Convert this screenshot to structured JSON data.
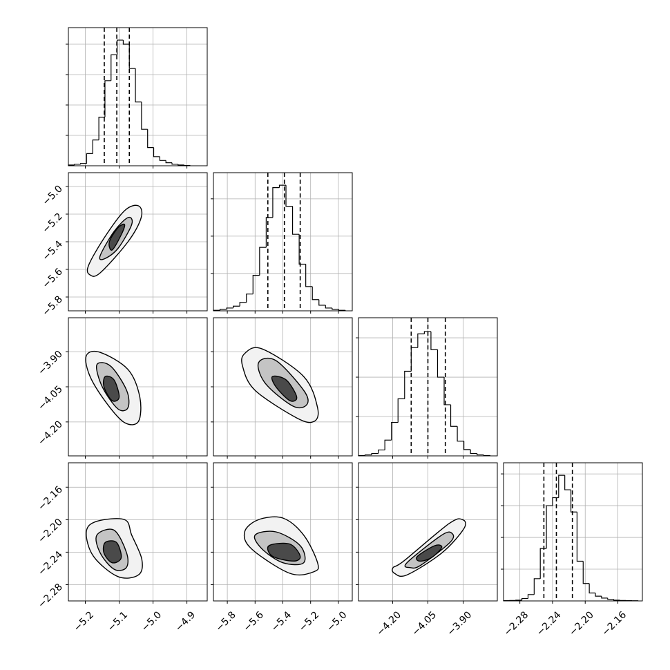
{
  "chart_data": {
    "type": "corner",
    "grid": true,
    "color": "#000000",
    "parameters": [
      {
        "lim": [
          -5.25,
          -4.84
        ],
        "ticks": [
          {
            "value": -5.2,
            "label": "−5.2"
          },
          {
            "value": -5.1,
            "label": "−5.1"
          },
          {
            "value": -5.0,
            "label": "−5.0"
          },
          {
            "value": -4.9,
            "label": "−4.9"
          }
        ]
      },
      {
        "lim": [
          -5.9,
          -4.9
        ],
        "ticks": [
          {
            "value": -5.8,
            "label": "−5.8"
          },
          {
            "value": -5.6,
            "label": "−5.6"
          },
          {
            "value": -5.4,
            "label": "−5.4"
          },
          {
            "value": -5.2,
            "label": "−5.2"
          },
          {
            "value": -5.0,
            "label": "−5.0"
          }
        ]
      },
      {
        "lim": [
          -4.345,
          -3.755
        ],
        "ticks": [
          {
            "value": -4.2,
            "label": "−4.20"
          },
          {
            "value": -4.05,
            "label": "−4.05"
          },
          {
            "value": -3.9,
            "label": "−3.90"
          }
        ]
      },
      {
        "lim": [
          -2.3,
          -2.13
        ],
        "ticks": [
          {
            "value": -2.28,
            "label": "−2.28"
          },
          {
            "value": -2.24,
            "label": "−2.24"
          },
          {
            "value": -2.2,
            "label": "−2.20"
          },
          {
            "value": -2.16,
            "label": "−2.16"
          }
        ]
      }
    ],
    "histograms": [
      {
        "bins": [
          -5.25,
          -5.232,
          -5.214,
          -5.196,
          -5.178,
          -5.16,
          -5.142,
          -5.124,
          -5.106,
          -5.088,
          -5.07,
          -5.052,
          -5.034,
          -5.016,
          -4.998,
          -4.98,
          -4.962,
          -4.944,
          -4.926,
          -4.908,
          -4.89
        ],
        "counts": [
          5,
          10,
          15,
          80,
          170,
          320,
          560,
          730,
          827,
          800,
          640,
          420,
          240,
          120,
          60,
          35,
          20,
          10,
          5,
          2
        ],
        "ylim": [
          0,
          909
        ],
        "yticks": [
          200,
          400,
          600,
          800
        ],
        "quantiles": [
          -5.144,
          -5.107,
          -5.07
        ]
      },
      {
        "bins": [
          -5.9,
          -5.8525,
          -5.805,
          -5.7575,
          -5.71,
          -5.6625,
          -5.615,
          -5.5675,
          -5.52,
          -5.4725,
          -5.425,
          -5.3775,
          -5.33,
          -5.2825,
          -5.235,
          -5.1875,
          -5.14,
          -5.0925,
          -5.045,
          -4.9975,
          -4.95
        ],
        "counts": [
          3,
          8,
          15,
          25,
          45,
          90,
          190,
          340,
          500,
          660,
          673,
          560,
          410,
          250,
          130,
          60,
          30,
          15,
          8,
          3
        ],
        "ylim": [
          0,
          740
        ],
        "yticks": [
          200,
          400,
          600
        ],
        "quantiles": [
          -5.508,
          -5.389,
          -5.275
        ]
      },
      {
        "bins": [
          -4.345,
          -4.317,
          -4.289,
          -4.261,
          -4.233,
          -4.205,
          -4.177,
          -4.149,
          -4.121,
          -4.093,
          -4.065,
          -4.037,
          -4.009,
          -3.981,
          -3.953,
          -3.925,
          -3.897,
          -3.869,
          -3.841,
          -3.813,
          -3.785
        ],
        "counts": [
          2,
          5,
          12,
          30,
          80,
          170,
          290,
          430,
          550,
          620,
          632,
          540,
          400,
          260,
          150,
          75,
          32,
          12,
          5,
          2
        ],
        "ylim": [
          0,
          702
        ],
        "yticks": [
          200,
          400,
          600
        ],
        "quantiles": [
          -4.121,
          -4.05,
          -3.976
        ]
      },
      {
        "bins": [
          -2.3,
          -2.2925,
          -2.285,
          -2.2775,
          -2.27,
          -2.2625,
          -2.255,
          -2.2475,
          -2.24,
          -2.2325,
          -2.225,
          -2.2175,
          -2.21,
          -2.2025,
          -2.195,
          -2.1875,
          -2.18,
          -2.1725,
          -2.165,
          -2.1575,
          -2.15,
          -2.1425,
          -2.135
        ],
        "counts": [
          2,
          3,
          5,
          15,
          40,
          140,
          330,
          600,
          650,
          791,
          700,
          560,
          250,
          110,
          50,
          30,
          18,
          10,
          5,
          3,
          2,
          1
        ],
        "ylim": [
          0,
          870
        ],
        "yticks": [
          200,
          400,
          600,
          800
        ],
        "quantiles": [
          -2.2506,
          -2.2353,
          -2.2157
        ]
      }
    ],
    "pairs": [
      [
        {
          "contours": [
            {
              "x": [
                -5.186,
                -5.191,
                -5.145,
                -5.084,
                -5.043,
                -5.035,
                -5.074,
                -5.156
              ],
              "y": [
                -5.64,
                -5.575,
                -5.375,
                -5.175,
                -5.14,
                -5.225,
                -5.4,
                -5.625
              ]
            },
            {
              "x": [
                -5.156,
                -5.115,
                -5.074,
                -5.063,
                -5.104,
                -5.145
              ],
              "y": [
                -5.5,
                -5.325,
                -5.225,
                -5.275,
                -5.45,
                -5.525
              ]
            },
            {
              "x": [
                -5.129,
                -5.104,
                -5.084,
                -5.094,
                -5.121
              ],
              "y": [
                -5.4,
                -5.3,
                -5.275,
                -5.35,
                -5.46
              ]
            }
          ]
        }
      ],
      [
        {
          "contours": [
            {
              "x": [
                -5.197,
                -5.156,
                -5.074,
                -5.039,
                -5.043,
                -5.084,
                -5.135,
                -5.186
              ],
              "y": [
                -3.917,
                -3.903,
                -3.976,
                -4.094,
                -4.198,
                -4.203,
                -4.124,
                -4.006
              ]
            },
            {
              "x": [
                -5.166,
                -5.125,
                -5.078,
                -5.074,
                -5.104,
                -5.15
              ],
              "y": [
                -3.956,
                -3.962,
                -4.065,
                -4.139,
                -4.144,
                -4.05
              ]
            },
            {
              "x": [
                -5.141,
                -5.115,
                -5.1,
                -5.121,
                -5.145
              ],
              "y": [
                -4.006,
                -4.021,
                -4.094,
                -4.109,
                -4.05
              ]
            }
          ]
        },
        {
          "contours": [
            {
              "x": [
                -5.675,
                -5.55,
                -5.25,
                -5.15,
                -5.175,
                -5.3,
                -5.6,
                -5.69
              ],
              "y": [
                -3.908,
                -3.888,
                -4.006,
                -4.139,
                -4.198,
                -4.183,
                -4.065,
                -3.962
              ]
            },
            {
              "x": [
                -5.575,
                -5.45,
                -5.25,
                -5.225,
                -5.325,
                -5.525
              ],
              "y": [
                -3.947,
                -3.938,
                -4.065,
                -4.124,
                -4.133,
                -4.036
              ]
            },
            {
              "x": [
                -5.475,
                -5.375,
                -5.3,
                -5.35,
                -5.45
              ],
              "y": [
                -4.006,
                -4.021,
                -4.094,
                -4.109,
                -4.05
              ]
            }
          ]
        }
      ],
      [
        {
          "contours": [
            {
              "x": [
                -5.197,
                -5.166,
                -5.084,
                -5.063,
                -5.033,
                -5.043,
                -5.104,
                -5.176
              ],
              "y": [
                -2.215,
                -2.202,
                -2.2,
                -2.219,
                -2.249,
                -2.268,
                -2.27,
                -2.245
              ]
            },
            {
              "x": [
                -5.166,
                -5.115,
                -5.078,
                -5.079,
                -5.115,
                -5.156
              ],
              "y": [
                -2.219,
                -2.213,
                -2.241,
                -2.259,
                -2.261,
                -2.241
              ]
            },
            {
              "x": [
                -5.141,
                -5.108,
                -5.094,
                -5.121,
                -5.145
              ],
              "y": [
                -2.228,
                -2.228,
                -2.247,
                -2.253,
                -2.241
              ]
            }
          ]
        },
        {
          "contours": [
            {
              "x": [
                -5.675,
                -5.575,
                -5.4,
                -5.25,
                -5.15,
                -5.175,
                -5.35,
                -5.625
              ],
              "y": [
                -2.215,
                -2.2,
                -2.198,
                -2.219,
                -2.253,
                -2.264,
                -2.266,
                -2.236
              ]
            },
            {
              "x": [
                -5.6,
                -5.45,
                -5.275,
                -5.25,
                -5.4,
                -5.55
              ],
              "y": [
                -2.219,
                -2.215,
                -2.232,
                -2.253,
                -2.253,
                -2.236
              ]
            },
            {
              "x": [
                -5.5,
                -5.35,
                -5.275,
                -5.325,
                -5.475
              ],
              "y": [
                -2.232,
                -2.23,
                -2.245,
                -2.251,
                -2.245
              ]
            }
          ]
        },
        {
          "contours": [
            {
              "x": [
                -4.198,
                -4.153,
                -3.961,
                -3.903,
                -3.897,
                -3.991,
                -4.139,
                -4.192
              ],
              "y": [
                -2.259,
                -2.251,
                -2.205,
                -2.2,
                -2.211,
                -2.241,
                -2.268,
                -2.266
              ]
            },
            {
              "x": [
                -4.139,
                -3.991,
                -3.947,
                -3.956,
                -4.08,
                -4.124
              ],
              "y": [
                -2.253,
                -2.219,
                -2.217,
                -2.228,
                -2.256,
                -2.259
              ]
            },
            {
              "x": [
                -4.094,
                -4.021,
                -3.991,
                -4.036,
                -4.086
              ],
              "y": [
                -2.245,
                -2.232,
                -2.234,
                -2.247,
                -2.251
              ]
            }
          ]
        }
      ]
    ]
  }
}
